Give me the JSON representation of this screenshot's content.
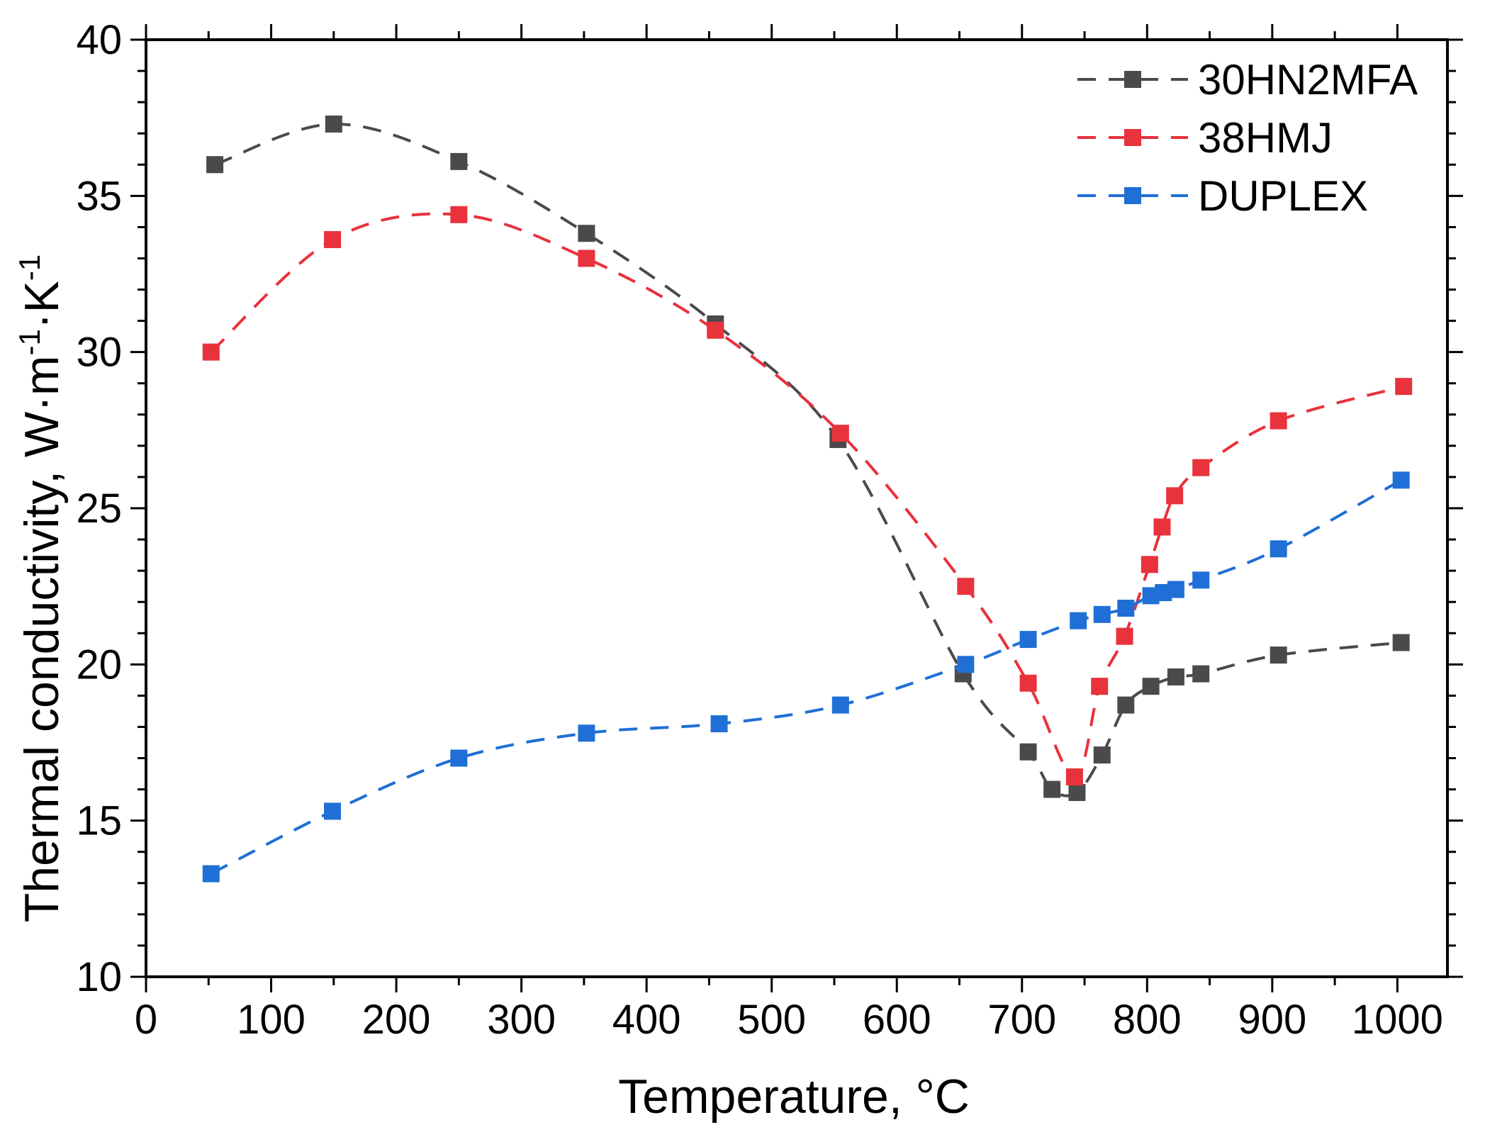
{
  "chart_data": {
    "type": "line",
    "title": "",
    "xlabel": "Temperature, °C",
    "ylabel_parts": {
      "main": "Thermal conductivity, W·m",
      "exp1": "-1",
      "mid": "·K",
      "exp2": "-1"
    },
    "xlim": [
      0,
      1040
    ],
    "ylim": [
      10,
      40
    ],
    "xticks": [
      0,
      100,
      200,
      300,
      400,
      500,
      600,
      700,
      800,
      900,
      1000
    ],
    "yticks": [
      10,
      15,
      20,
      25,
      30,
      35,
      40
    ],
    "xtick_labels": [
      "0",
      "100",
      "200",
      "300",
      "400",
      "500",
      "600",
      "700",
      "800",
      "900",
      "1000"
    ],
    "ytick_labels": [
      "10",
      "15",
      "20",
      "25",
      "30",
      "35",
      "40"
    ],
    "line_style": "dashed smoothed fit with square markers",
    "legend_position": "top-right",
    "series": [
      {
        "name": "30HN2MFA",
        "color": "#4a4a4a",
        "x": [
          55,
          150,
          250,
          352,
          455,
          553,
          653,
          705,
          724,
          744,
          764,
          783,
          803,
          823,
          843,
          905,
          1003
        ],
        "y": [
          36.0,
          37.3,
          36.1,
          33.8,
          30.9,
          27.2,
          19.7,
          17.2,
          16.0,
          15.9,
          17.1,
          18.7,
          19.3,
          19.6,
          19.7,
          20.3,
          20.7
        ]
      },
      {
        "name": "38HMJ",
        "color": "#e8323c",
        "x": [
          52,
          149,
          250,
          352,
          455,
          555,
          655,
          705,
          742,
          762,
          782,
          802,
          812,
          822,
          843,
          905,
          1005
        ],
        "y": [
          30.0,
          33.6,
          34.4,
          33.0,
          30.7,
          27.4,
          22.5,
          19.4,
          16.4,
          19.3,
          20.9,
          23.2,
          24.4,
          25.4,
          26.3,
          27.8,
          28.9
        ]
      },
      {
        "name": "DUPLEX",
        "color": "#1f6fd6",
        "x": [
          52,
          149,
          250,
          352,
          458,
          555,
          655,
          705,
          745,
          764,
          783,
          803,
          813,
          823,
          843,
          905,
          1003
        ],
        "y": [
          13.3,
          15.3,
          17.0,
          17.8,
          18.1,
          18.7,
          20.0,
          20.8,
          21.4,
          21.6,
          21.8,
          22.2,
          22.3,
          22.4,
          22.7,
          23.7,
          25.9
        ]
      }
    ]
  }
}
